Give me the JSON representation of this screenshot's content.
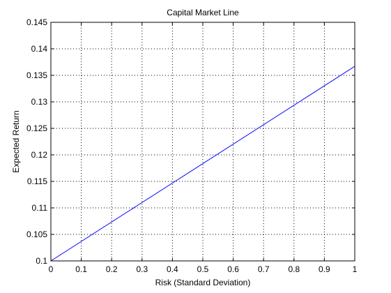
{
  "chart_data": {
    "type": "line",
    "title": "Capital Market Line",
    "xlabel": "Risk (Standard Deviation)",
    "ylabel": "Expected Return",
    "xlim": [
      0,
      1
    ],
    "ylim": [
      0.1,
      0.145
    ],
    "xticks": [
      "0",
      "0.1",
      "0.2",
      "0.3",
      "0.4",
      "0.5",
      "0.6",
      "0.7",
      "0.8",
      "0.9",
      "1"
    ],
    "yticks": [
      "0.1",
      "0.105",
      "0.11",
      "0.115",
      "0.12",
      "0.125",
      "0.13",
      "0.135",
      "0.14",
      "0.145"
    ],
    "grid": true,
    "series": [
      {
        "color": "#0000ff",
        "x": [
          0,
          1
        ],
        "y": [
          0.1,
          0.1367
        ]
      }
    ]
  }
}
